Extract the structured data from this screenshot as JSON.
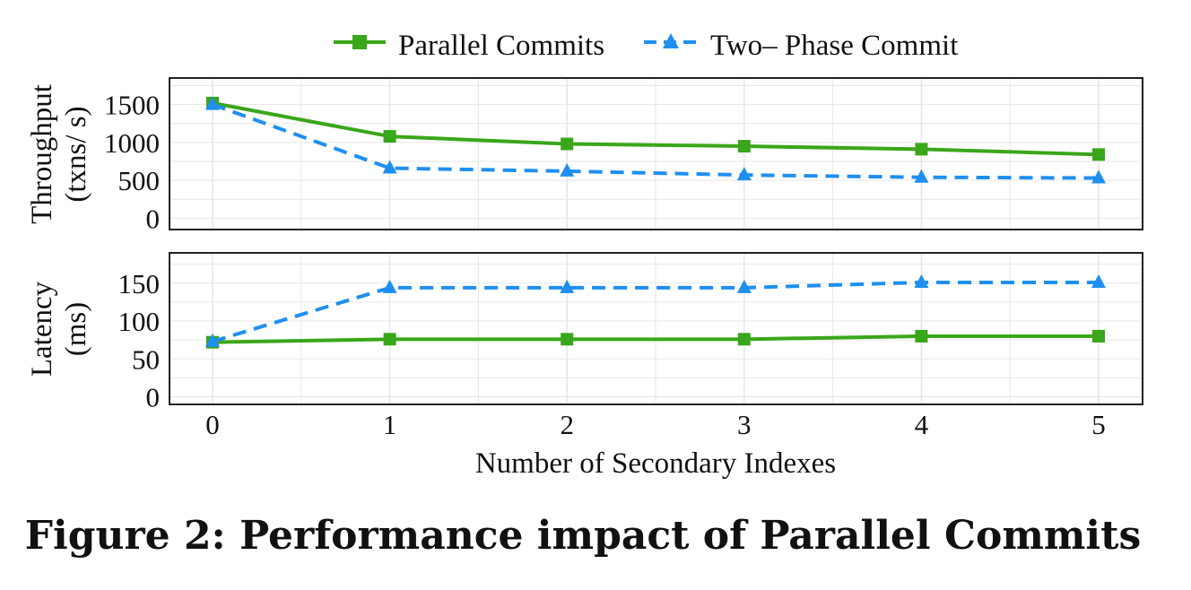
{
  "chart_data": {
    "type": "line",
    "x": [
      0,
      1,
      2,
      3,
      4,
      5
    ],
    "xlabel": "Number of Secondary Indexes",
    "xticks": [
      "0",
      "1",
      "2",
      "3",
      "4",
      "5"
    ],
    "legend": {
      "placement": "top-center",
      "entries": [
        "Parallel Commits",
        "Two– Phase Commit"
      ]
    },
    "series_styles": [
      {
        "name": "Parallel Commits",
        "color": "#3aa61a",
        "marker": "square",
        "dash": "solid"
      },
      {
        "name": "Two– Phase Commit",
        "color": "#1f8fef",
        "marker": "triangle",
        "dash": "dashed"
      }
    ],
    "panels": [
      {
        "id": "throughput",
        "ylabel_line1": "Throughput",
        "ylabel_line2": "(txns/ s)",
        "ylim": [
          -150,
          1850
        ],
        "yticks": [
          0,
          500,
          1000,
          1500
        ],
        "ytick_labels": [
          "0",
          "500",
          "1000",
          "1500"
        ],
        "grid": true,
        "series": [
          {
            "name": "Parallel Commits",
            "values": [
              1520,
              1080,
              980,
              950,
              910,
              840
            ]
          },
          {
            "name": "Two– Phase Commit",
            "values": [
              1500,
              660,
              620,
              570,
              540,
              530
            ]
          }
        ]
      },
      {
        "id": "latency",
        "ylabel_line1": "Latency",
        "ylabel_line2": "(ms)",
        "ylim": [
          -10,
          190
        ],
        "yticks": [
          0,
          50,
          100,
          150
        ],
        "ytick_labels": [
          "0",
          "50",
          "100",
          "150"
        ],
        "grid": true,
        "series": [
          {
            "name": "Parallel Commits",
            "values": [
              72,
              76,
              76,
              76,
              80,
              80
            ]
          },
          {
            "name": "Two– Phase Commit",
            "values": [
              73,
              144,
              144,
              144,
              151,
              151
            ]
          }
        ]
      }
    ]
  },
  "caption": "Figure 2: Performance impact of Parallel Commits"
}
